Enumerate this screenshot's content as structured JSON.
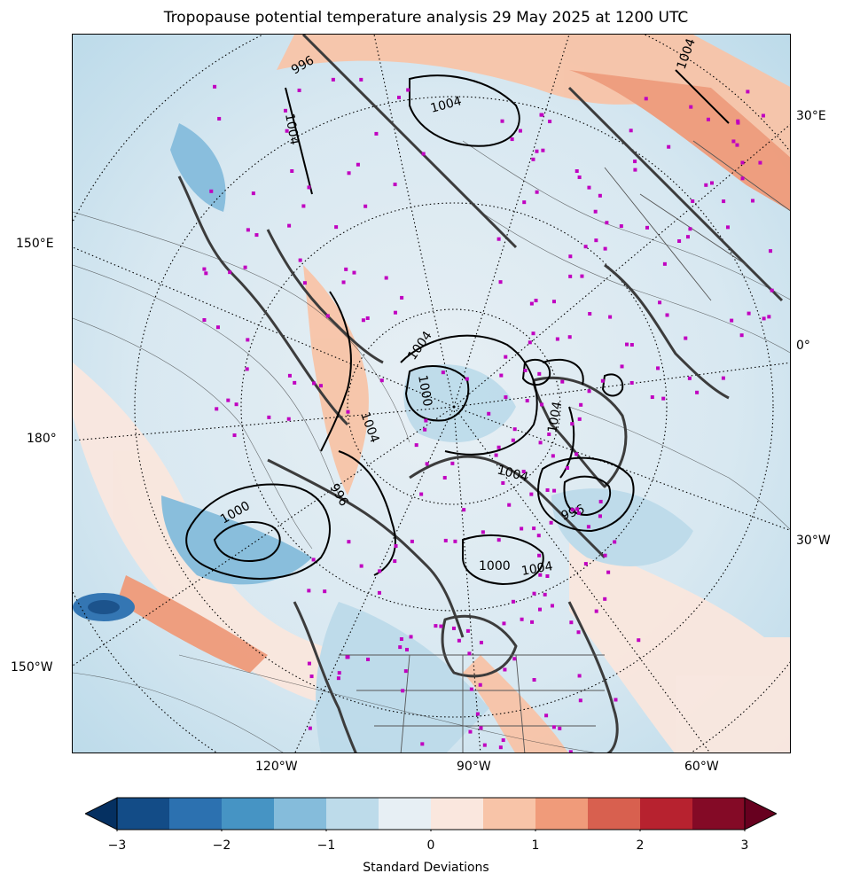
{
  "title": "Tropopause potential temperature analysis 29 May 2025 at 1200 UTC",
  "map": {
    "projection": "polar stereographic (north)",
    "longitude_labels": {
      "left": [
        "150°E",
        "180°",
        "150°W"
      ],
      "bottom": [
        "120°W",
        "90°W",
        "60°W"
      ],
      "right": [
        "30°E",
        "0°",
        "30°W"
      ]
    },
    "pressure_contour_labels": [
      "996",
      "1004",
      "1004",
      "1004",
      "1004",
      "1000",
      "1004",
      "1004",
      "1000",
      "1004",
      "996",
      "1000",
      "1004",
      "996"
    ],
    "colors": {
      "coastline": "#3c3c3c",
      "pressure_contour": "#000000",
      "station_marker": "#c000c0",
      "graticule": "#000000"
    }
  },
  "colorbar": {
    "label": "Standard Deviations",
    "ticks": [
      "−3",
      "−2",
      "−1",
      "0",
      "1",
      "2",
      "3"
    ],
    "range": [
      -3,
      3
    ],
    "colors": [
      "#053061",
      "#134c87",
      "#2c71b0",
      "#4694c4",
      "#85bcdb",
      "#bddbea",
      "#e7eff4",
      "#fae7de",
      "#f8c4a8",
      "#f09b7a",
      "#d8604f",
      "#b7222f",
      "#840a26",
      "#67001f"
    ]
  }
}
